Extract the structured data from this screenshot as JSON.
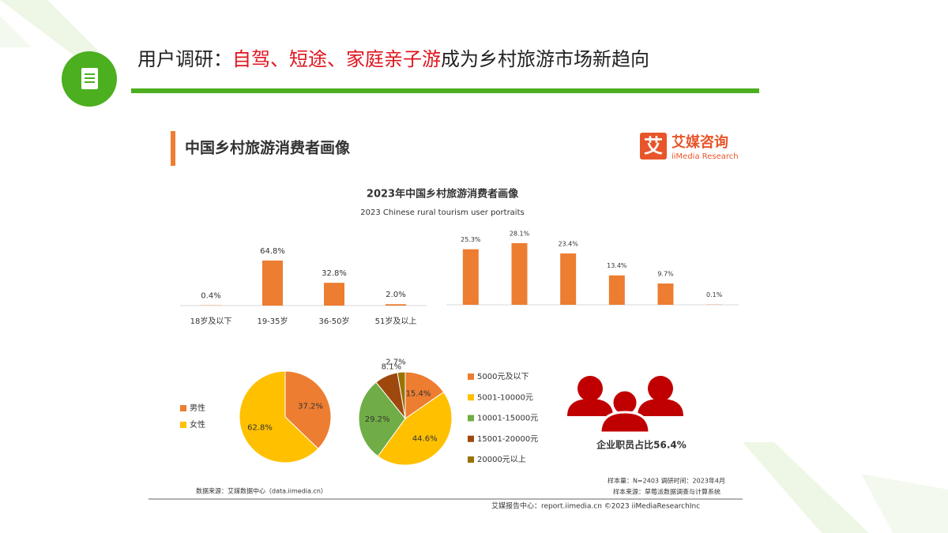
{
  "header": {
    "title_parts": [
      "用户调研：",
      "自驾、短途、家庭亲子游",
      "成为乡村旅游市场新趋向"
    ]
  },
  "panel": {
    "title": "中国乡村旅游消费者画像",
    "logo_mark": "艾",
    "logo_name": "艾媒咨询",
    "logo_sub": "iiMedia Research",
    "chart_title": "2023年中国乡村旅游消费者画像",
    "chart_subtitle": "2023 Chinese rural tourism user portraits",
    "stat": "企业职员占比56.4%",
    "source": "数据来源：艾媒数据中心（data.iimedia.cn）",
    "sample": "样本量：N=2403    调研时间：2023年4月",
    "sample_source": "样本来源：草莓派数据调查与计算系统",
    "footer": "艾媒报告中心：report.iimedia.cn    ©2023 iiMediaResearchInc"
  },
  "chart_data": [
    {
      "type": "bar",
      "categories": [
        "18岁及以下",
        "19-35岁",
        "36-50岁",
        "51岁及以上"
      ],
      "values": [
        0.4,
        64.8,
        32.8,
        2.0
      ],
      "value_labels": [
        "0.4%",
        "64.8%",
        "32.8%",
        "2.0%"
      ],
      "color": "#ED7D31"
    },
    {
      "type": "bar",
      "categories": [
        null,
        null,
        null,
        null,
        null,
        null
      ],
      "values": [
        25.3,
        28.1,
        23.4,
        13.4,
        9.7,
        0.1
      ],
      "value_labels": [
        "25.3%",
        "28.1%",
        "23.4%",
        "13.4%",
        "9.7%",
        "0.1%"
      ],
      "color": "#ED7D31"
    },
    {
      "type": "pie",
      "categories": [
        "男性",
        "女性"
      ],
      "values": [
        37.2,
        62.8
      ],
      "value_labels": [
        "37.2%",
        "62.8%"
      ],
      "colors": [
        "#ED7D31",
        "#FFC000"
      ]
    },
    {
      "type": "pie",
      "categories": [
        "5000元及以下",
        "5001-10000元",
        "10001-15000元",
        "15001-20000元",
        "20000元以上"
      ],
      "values": [
        15.4,
        44.6,
        29.2,
        8.1,
        2.7
      ],
      "value_labels": [
        "15.4%",
        "44.6%",
        "29.2%",
        "8.1%",
        "2.7%"
      ],
      "colors": [
        "#ED7D31",
        "#FFC000",
        "#70AD47",
        "#9E480E",
        "#997300"
      ]
    }
  ]
}
